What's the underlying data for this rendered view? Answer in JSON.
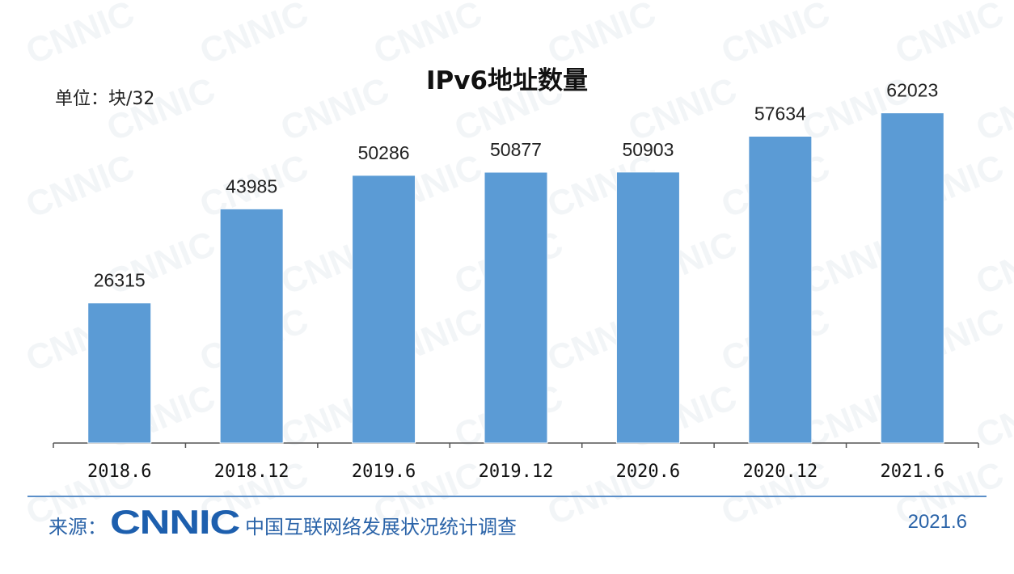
{
  "unit_label": "单位：块/32",
  "footer": {
    "source_label": "来源：",
    "logo_text": "CNNIC",
    "report_name": "中国互联网络发展状况统计调查",
    "date": "2021.6"
  },
  "colors": {
    "bar": "#5b9bd5",
    "axis": "#555555",
    "accent": "#2a63a8"
  },
  "chart_data": {
    "type": "bar",
    "title": "IPv6地址数量",
    "categories": [
      "2018.6",
      "2018.12",
      "2019.6",
      "2019.12",
      "2020.6",
      "2020.12",
      "2021.6"
    ],
    "values": [
      26315,
      43985,
      50286,
      50877,
      50903,
      57634,
      62023
    ],
    "xlabel": "",
    "ylabel": "",
    "ylim": [
      0,
      65000
    ],
    "grid": false,
    "legend": "none"
  }
}
